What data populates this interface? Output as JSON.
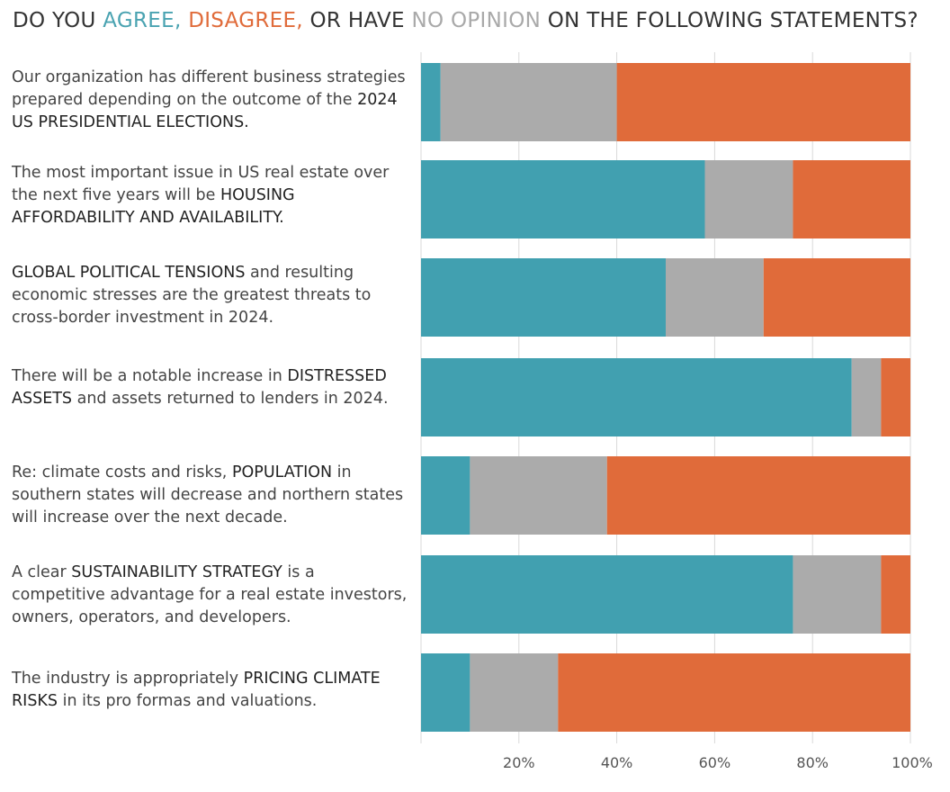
{
  "title": {
    "prefix": "DO YOU ",
    "agree": "AGREE,",
    "disagree": " DISAGREE,",
    "mid": " OR HAVE ",
    "no_opinion": "NO OPINION",
    "suffix": " ON THE FOLLOWING STATEMENTS?"
  },
  "colors": {
    "agree": "#41a0b0",
    "no_opinion": "#ababab",
    "disagree": "#e06b3a",
    "title_agree": "#4aa3b1",
    "title_disagree": "#e06b3a",
    "title_no_opinion": "#a9a9a9"
  },
  "statements": [
    {
      "parts": [
        {
          "text": "Our organization has different business strategies prepared depending on the outcome of the ",
          "em": false
        },
        {
          "text": "2024 US PRESIDENTIAL ELECTIONS.",
          "em": true
        }
      ]
    },
    {
      "parts": [
        {
          "text": "The most important issue in US real estate over the next five years will be ",
          "em": false
        },
        {
          "text": "HOUSING AFFORDABILITY AND AVAILABILITY.",
          "em": true
        }
      ]
    },
    {
      "parts": [
        {
          "text": "GLOBAL POLITICAL TENSIONS",
          "em": true
        },
        {
          "text": " and resulting economic stresses are the greatest threats to cross-border investment in 2024.",
          "em": false
        }
      ]
    },
    {
      "parts": [
        {
          "text": "There will be a notable increase in ",
          "em": false
        },
        {
          "text": "DISTRESSED ASSETS",
          "em": true
        },
        {
          "text": " and assets returned to lenders in 2024.",
          "em": false
        }
      ]
    },
    {
      "parts": [
        {
          "text": "Re: climate costs and risks, ",
          "em": false
        },
        {
          "text": "POPULATION",
          "em": true
        },
        {
          "text": " in southern states will decrease and northern states will increase over the next decade.",
          "em": false
        }
      ]
    },
    {
      "parts": [
        {
          "text": "A clear ",
          "em": false
        },
        {
          "text": "SUSTAINABILITY STRATEGY",
          "em": true
        },
        {
          "text": " is a competitive advantage for a real estate investors, owners, operators, and developers.",
          "em": false
        }
      ]
    },
    {
      "parts": [
        {
          "text": "The industry is appropriately ",
          "em": false
        },
        {
          "text": "PRICING CLIMATE RISKS",
          "em": true
        },
        {
          "text": " in its pro formas and valuations.",
          "em": false
        }
      ]
    }
  ],
  "chart_data": {
    "type": "bar",
    "orientation": "horizontal",
    "stacked": true,
    "categories": [
      "Our organization has different business strategies prepared depending on the outcome of the 2024 US PRESIDENTIAL ELECTIONS.",
      "The most important issue in US real estate over the next five years will be HOUSING AFFORDABILITY AND AVAILABILITY.",
      "GLOBAL POLITICAL TENSIONS and resulting economic stresses are the greatest threats to cross-border investment in 2024.",
      "There will be a notable increase in DISTRESSED ASSETS and assets returned to lenders in 2024.",
      "Re: climate costs and risks, POPULATION in southern states will decrease and northern states will increase over the next decade.",
      "A clear SUSTAINABILITY STRATEGY is a competitive advantage for a real estate investors, owners, operators, and developers.",
      "The industry is appropriately PRICING CLIMATE RISKS in its pro formas and valuations."
    ],
    "series": [
      {
        "name": "AGREE",
        "values": [
          4,
          58,
          50,
          88,
          10,
          76,
          10
        ]
      },
      {
        "name": "NO OPINION",
        "values": [
          36,
          18,
          20,
          6,
          28,
          18,
          18
        ]
      },
      {
        "name": "DISAGREE",
        "values": [
          60,
          24,
          30,
          6,
          62,
          6,
          72
        ]
      }
    ],
    "xlim": [
      0,
      100
    ],
    "xticks": [
      "20%",
      "40%",
      "60%",
      "80%",
      "100%"
    ],
    "xtick_values": [
      20,
      40,
      60,
      80,
      100
    ],
    "grid": true
  }
}
